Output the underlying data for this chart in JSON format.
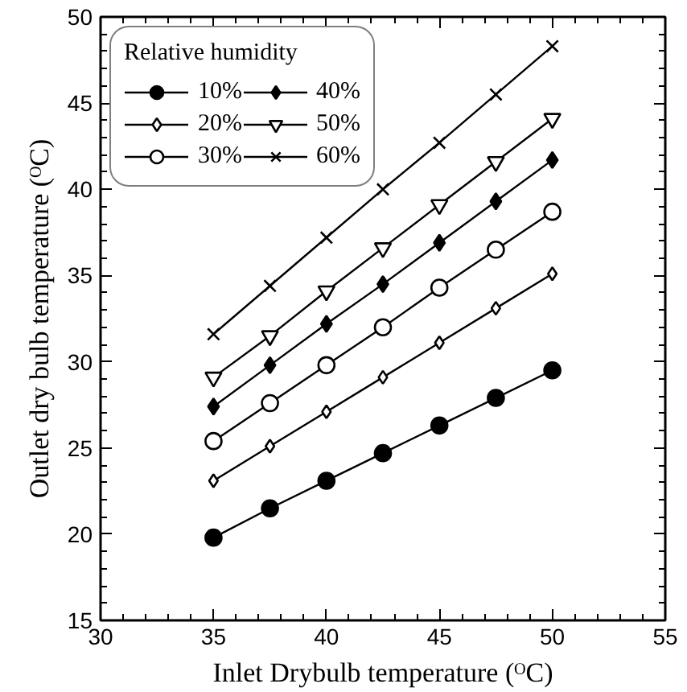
{
  "chart_data": {
    "type": "line",
    "xlabel": "Inlet Drybulb temperature (ᴼC)",
    "ylabel": "Outlet dry bulb temperature (ᴼC)",
    "legend_title": "Relative humidity",
    "x": [
      35,
      37.5,
      40,
      42.5,
      45,
      47.5,
      50
    ],
    "series": [
      {
        "name": "10%",
        "color": "#000000",
        "marker": "circle",
        "values": [
          19.8,
          21.5,
          23.1,
          24.7,
          26.3,
          27.9,
          29.5
        ]
      },
      {
        "name": "20%",
        "color": "#000000",
        "marker": "diamond",
        "values": [
          23.1,
          25.1,
          27.1,
          29.1,
          31.1,
          33.1,
          35.1
        ]
      },
      {
        "name": "30%",
        "color": "#000000",
        "marker": "circle",
        "values": [
          25.4,
          27.6,
          29.8,
          32.0,
          34.3,
          36.5,
          38.7
        ]
      },
      {
        "name": "40%",
        "color": "#000000",
        "marker": "diamond",
        "values": [
          27.4,
          29.8,
          32.2,
          34.5,
          36.9,
          39.3,
          41.7
        ]
      },
      {
        "name": "50%",
        "color": "#000000",
        "marker": "triangle",
        "values": [
          29.1,
          31.5,
          34.1,
          36.6,
          39.1,
          41.6,
          44.1
        ]
      },
      {
        "name": "60%",
        "color": "#000000",
        "marker": "cross",
        "values": [
          31.6,
          34.4,
          37.2,
          40.0,
          42.7,
          45.5,
          48.3
        ]
      }
    ],
    "xlim": [
      30,
      55
    ],
    "xticks": [
      30,
      35,
      40,
      45,
      50,
      55
    ],
    "ylim": [
      15,
      50
    ],
    "yticks": [
      15,
      20,
      25,
      30,
      35,
      40,
      45,
      50
    ],
    "grid": false,
    "legend": "top left",
    "line_style": "solid"
  }
}
